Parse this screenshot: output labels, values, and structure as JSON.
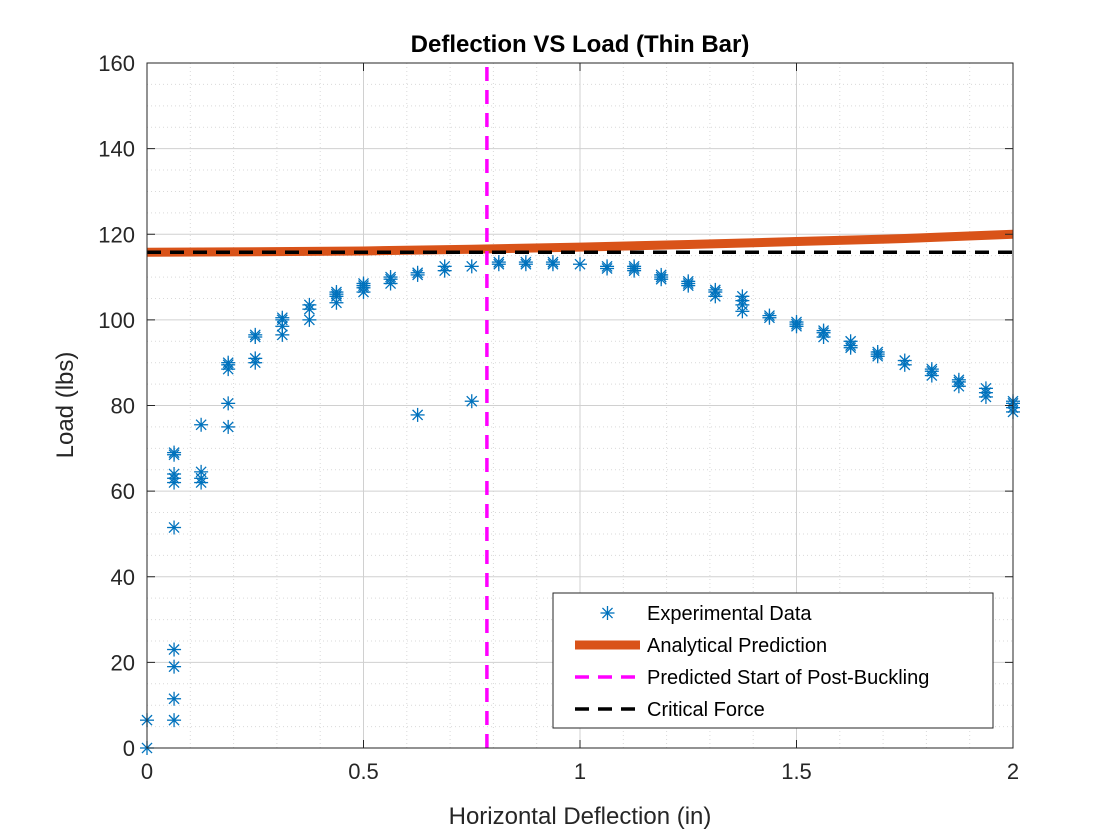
{
  "chart_data": {
    "type": "scatter",
    "title": "Deflection VS Load (Thin Bar)",
    "xlabel": "Horizontal Deflection (in)",
    "ylabel": "Load (lbs)",
    "xlim": [
      0,
      2
    ],
    "ylim": [
      0,
      160
    ],
    "xticks": [
      0,
      0.5,
      1,
      1.5,
      2
    ],
    "xtick_labels": [
      "0",
      "0.5",
      "1",
      "1.5",
      "2"
    ],
    "yticks": [
      0,
      20,
      40,
      60,
      80,
      100,
      120,
      140,
      160
    ],
    "ytick_labels": [
      "0",
      "20",
      "40",
      "60",
      "80",
      "100",
      "120",
      "140",
      "160"
    ],
    "grid": true,
    "minor_grid": true,
    "legend_position": "bottom-right",
    "series": [
      {
        "name": "Experimental Data",
        "kind": "markers",
        "marker": "asterisk",
        "color": "#0072BD",
        "x": [
          0,
          0,
          0.0625,
          0.0625,
          0.0625,
          0.0625,
          0.0625,
          0.0625,
          0.0625,
          0.0625,
          0.0625,
          0.0625,
          0.125,
          0.125,
          0.125,
          0.125,
          0.1875,
          0.1875,
          0.1875,
          0.1875,
          0.1875,
          0.25,
          0.25,
          0.25,
          0.25,
          0.3125,
          0.3125,
          0.3125,
          0.3125,
          0.375,
          0.375,
          0.375,
          0.4375,
          0.4375,
          0.4375,
          0.4375,
          0.5,
          0.5,
          0.5,
          0.5,
          0.5625,
          0.5625,
          0.5625,
          0.625,
          0.625,
          0.625,
          0.6875,
          0.6875,
          0.75,
          0.75,
          0.8125,
          0.8125,
          0.875,
          0.875,
          0.9375,
          0.9375,
          1.0,
          1.0625,
          1.0625,
          1.125,
          1.125,
          1.125,
          1.1875,
          1.1875,
          1.1875,
          1.25,
          1.25,
          1.25,
          1.3125,
          1.3125,
          1.3125,
          1.375,
          1.375,
          1.375,
          1.375,
          1.4375,
          1.4375,
          1.5,
          1.5,
          1.5,
          1.5625,
          1.5625,
          1.5625,
          1.625,
          1.625,
          1.625,
          1.6875,
          1.6875,
          1.6875,
          1.75,
          1.75,
          1.8125,
          1.8125,
          1.8125,
          1.875,
          1.875,
          1.875,
          1.9375,
          1.9375,
          1.9375,
          2.0,
          2.0,
          2.0,
          2.0
        ],
        "y": [
          0,
          6.5,
          6.5,
          11.5,
          19,
          23,
          51.5,
          62,
          63,
          64,
          68.5,
          69,
          62,
          63,
          64.5,
          75.5,
          75,
          80.5,
          88.5,
          89.5,
          90,
          90,
          91,
          96,
          96.5,
          96.5,
          98.5,
          100,
          100.5,
          100,
          102.5,
          103.5,
          104,
          105.5,
          106,
          106.5,
          106.5,
          107.5,
          108,
          108.5,
          108.5,
          109.5,
          110,
          77.8,
          110.5,
          111,
          111.5,
          112.5,
          81,
          112.5,
          113,
          113.5,
          113,
          113.5,
          113,
          113.5,
          113,
          112,
          112.5,
          111.5,
          112,
          112.5,
          109.5,
          110,
          110.5,
          108,
          108.5,
          109,
          105.5,
          106.5,
          107,
          102,
          103.5,
          104.5,
          105.5,
          100.5,
          101,
          98.5,
          99,
          99.5,
          96,
          97,
          97.5,
          93.5,
          94,
          95,
          91.5,
          92,
          92.5,
          89.5,
          90.5,
          87,
          88,
          88.5,
          84.5,
          85.5,
          86,
          82,
          83,
          84,
          78.5,
          79.5,
          80.5,
          81
        ]
      },
      {
        "name": "Analytical Prediction",
        "kind": "line",
        "color": "#D95319",
        "x": [
          0,
          0.25,
          0.5,
          0.75,
          1.0,
          1.25,
          1.5,
          1.75,
          2.0
        ],
        "y": [
          115.8,
          115.9,
          116.1,
          116.5,
          117.0,
          117.6,
          118.3,
          119.0,
          120.0
        ]
      },
      {
        "name": "Predicted Start of Post-Buckling",
        "kind": "dashed-vertical",
        "color": "#FF00FF",
        "x": [
          0.785,
          0.785
        ],
        "y": [
          0,
          160
        ]
      },
      {
        "name": "Critical Force",
        "kind": "dashed-line",
        "color": "#000000",
        "x": [
          0,
          2
        ],
        "y": [
          115.8,
          115.8
        ]
      }
    ]
  }
}
